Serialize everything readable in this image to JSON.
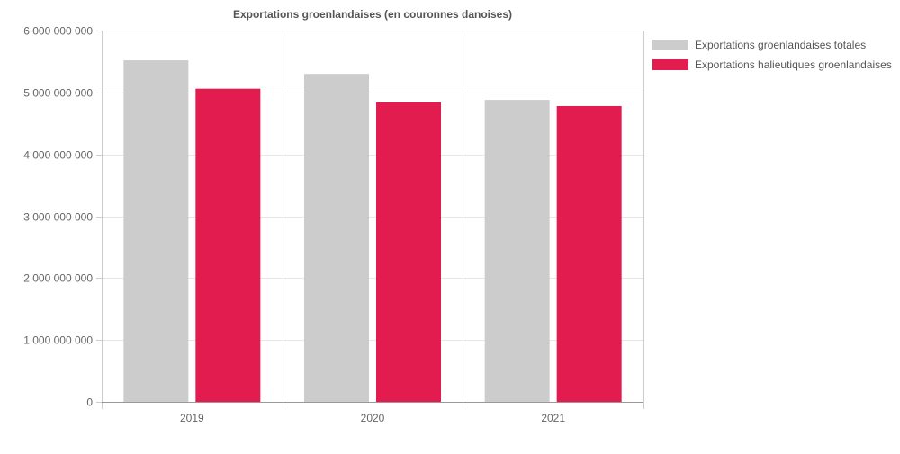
{
  "chart_data": {
    "type": "bar",
    "title": "Exportations groenlandaises (en couronnes danoises)",
    "xlabel": "",
    "ylabel": "",
    "categories": [
      "2019",
      "2020",
      "2021"
    ],
    "ylim": [
      0,
      6000000000
    ],
    "yticks": [
      0,
      1000000000,
      2000000000,
      3000000000,
      4000000000,
      5000000000,
      6000000000
    ],
    "ytick_labels": [
      "0",
      "1 000 000 000",
      "2 000 000 000",
      "3 000 000 000",
      "4 000 000 000",
      "5 000 000 000",
      "6 000 000 000"
    ],
    "grid": true,
    "legend_position": "right",
    "series": [
      {
        "name": "Exportations groenlandaises totales",
        "color": "#cccccc",
        "values": [
          5520000000,
          5300000000,
          4880000000
        ]
      },
      {
        "name": "Exportations halieutiques groenlandaises",
        "color": "#e31c50",
        "values": [
          5060000000,
          4840000000,
          4780000000
        ]
      }
    ]
  }
}
